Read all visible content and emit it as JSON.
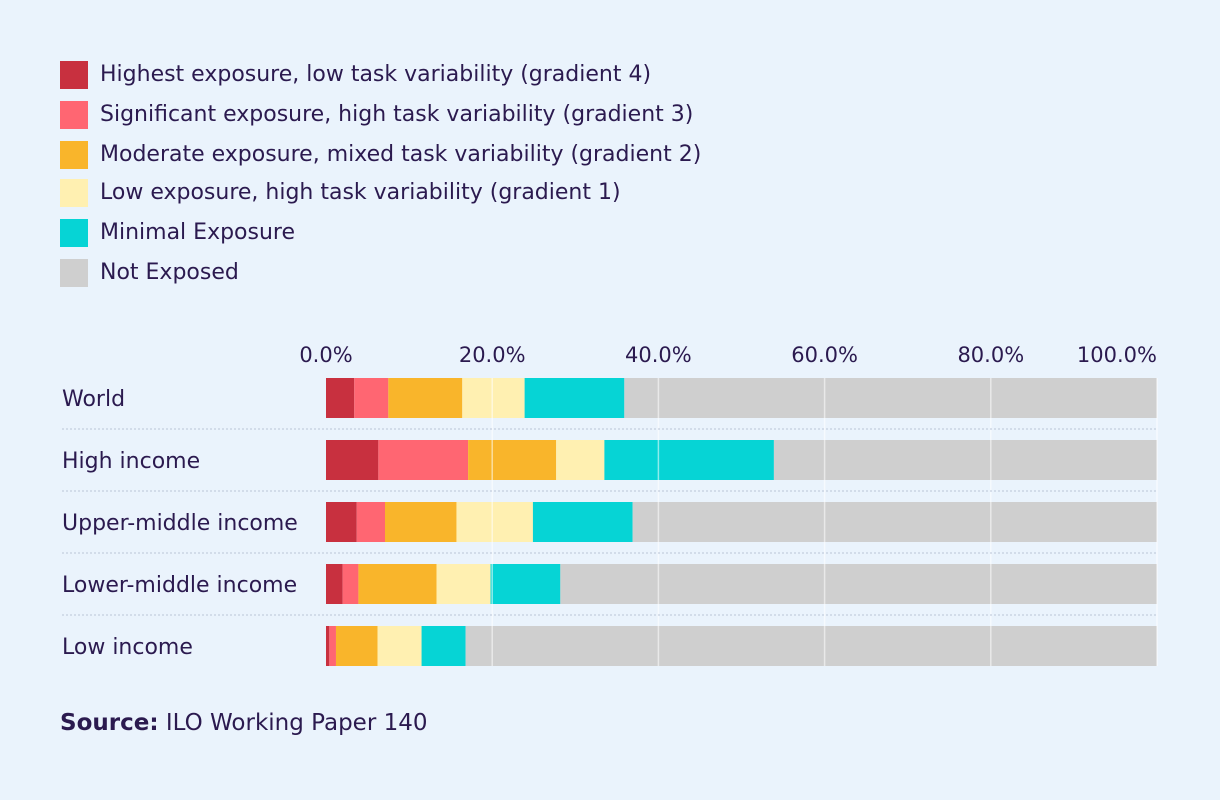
{
  "legend": [
    {
      "label": "Highest exposure, low task variability (gradient 4)",
      "color": "#c8303f"
    },
    {
      "label": "Significant exposure, high task variability (gradient 3)",
      "color": "#ff6672"
    },
    {
      "label": "Moderate exposure, mixed task variability (gradient 2)",
      "color": "#f9b52b"
    },
    {
      "label": "Low exposure, high task variability (gradient 1)",
      "color": "#fff0b1"
    },
    {
      "label": "Minimal Exposure",
      "color": "#06d4d5"
    },
    {
      "label": "Not Exposed",
      "color": "#cfcfcf"
    }
  ],
  "source": {
    "label": "Source:",
    "text": "ILO Working Paper 140"
  },
  "chart_data": {
    "type": "bar",
    "orientation": "horizontal",
    "stacked": true,
    "categories": [
      "World",
      "High income",
      "Upper-middle income",
      "Lower-middle income",
      "Low income"
    ],
    "series": [
      {
        "name": "Highest exposure, low task variability (gradient 4)",
        "color": "#c8303f",
        "values": [
          3.4,
          6.3,
          3.7,
          2.0,
          0.4
        ]
      },
      {
        "name": "Significant exposure, high task variability (gradient 3)",
        "color": "#ff6672",
        "values": [
          4.1,
          10.8,
          3.4,
          1.9,
          0.8
        ]
      },
      {
        "name": "Moderate exposure, mixed task variability (gradient 2)",
        "color": "#f9b52b",
        "values": [
          8.9,
          10.6,
          8.6,
          9.4,
          5.0
        ]
      },
      {
        "name": "Low exposure, high task variability (gradient 1)",
        "color": "#fff0b1",
        "values": [
          7.5,
          5.8,
          9.2,
          6.5,
          5.3
        ]
      },
      {
        "name": "Minimal Exposure",
        "color": "#06d4d5",
        "values": [
          12.0,
          20.4,
          12.0,
          8.4,
          5.3
        ]
      },
      {
        "name": "Not Exposed",
        "color": "#cfcfcf",
        "values": [
          64.1,
          46.1,
          63.1,
          71.8,
          83.2
        ]
      }
    ],
    "xlim": [
      0,
      100
    ],
    "xticks": [
      "0.0%",
      "20.0%",
      "40.0%",
      "60.0%",
      "80.0%",
      "100.0%"
    ],
    "grid": true,
    "legend_position": "top-left"
  }
}
